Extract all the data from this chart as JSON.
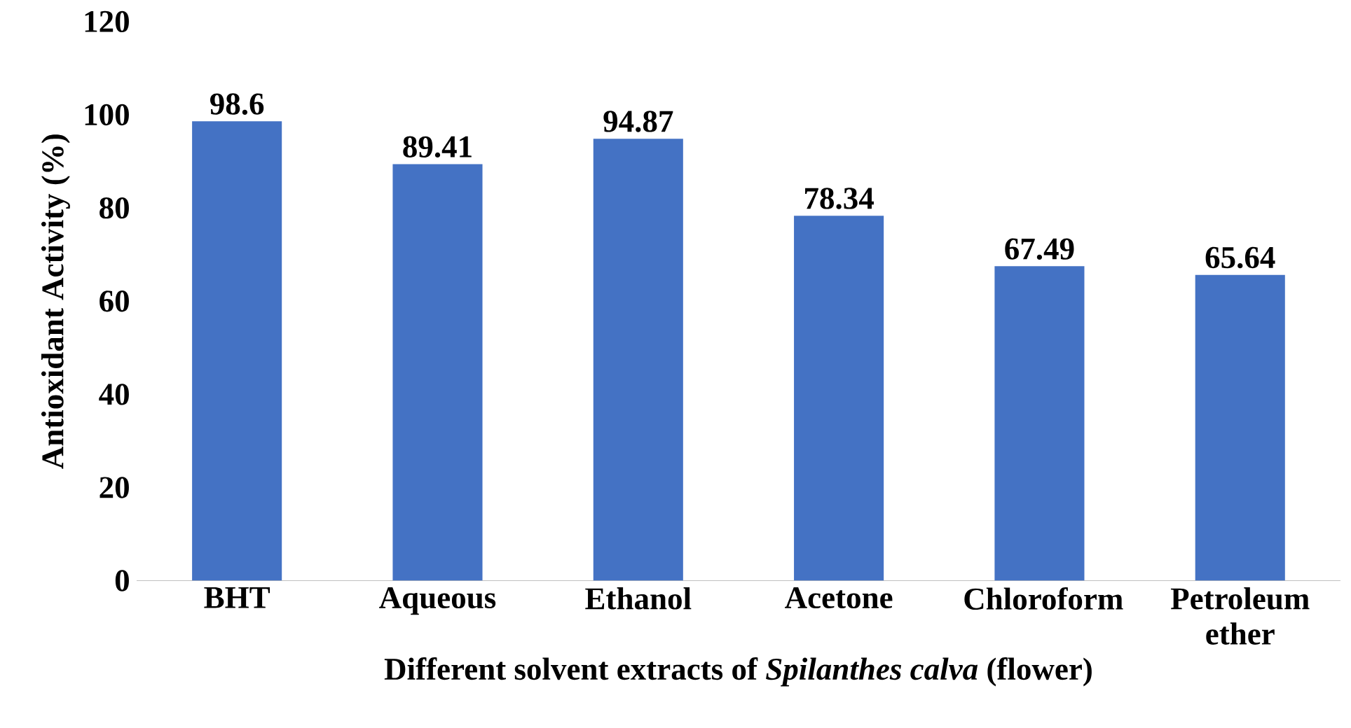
{
  "chart_data": {
    "type": "bar",
    "xlabel": "Different solvent extracts of *Spilanthes calva* (flower)",
    "ylabel": "Antioxidant Activity (%)",
    "categories": [
      "BHT",
      "Aqueous",
      "Ethanol",
      "Acetone",
      "Chloroform",
      "Petroleum ether"
    ],
    "values": [
      98.6,
      89.41,
      94.87,
      78.34,
      67.49,
      65.64
    ],
    "color": "#4472c4",
    "ylim": [
      0,
      120
    ],
    "yticks": [
      0,
      20,
      40,
      60,
      80,
      100,
      120
    ],
    "grid": false,
    "data_labels": true
  }
}
